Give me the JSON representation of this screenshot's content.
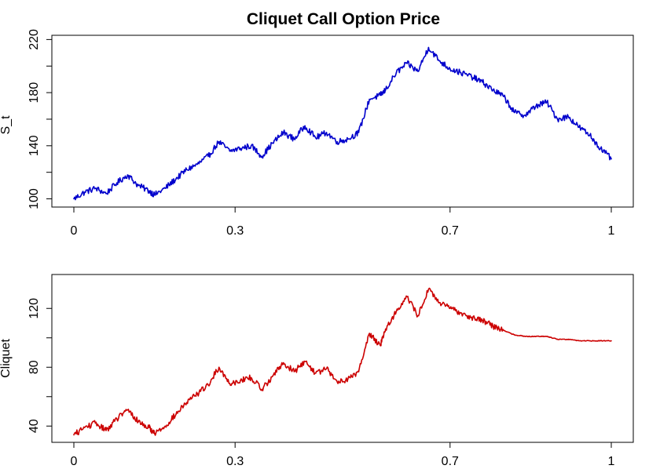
{
  "figure": {
    "title": "Cliquet Call Option Price"
  },
  "chart_data": [
    {
      "type": "line",
      "title": "Cliquet Call Option Price",
      "xlabel": "",
      "ylabel": "S_t",
      "xlim": [
        0,
        1
      ],
      "ylim": [
        95,
        222
      ],
      "grid": false,
      "x_ticks": [
        0,
        0.3,
        0.7,
        1
      ],
      "x_tick_labels": [
        "0",
        "0.3",
        "0.7",
        "1"
      ],
      "y_ticks": [
        100,
        140,
        180,
        220
      ],
      "y_tick_labels": [
        "100",
        "140",
        "180",
        "220"
      ],
      "series": [
        {
          "color": "#0000cc",
          "x": [
            0,
            0.02,
            0.04,
            0.06,
            0.08,
            0.1,
            0.12,
            0.14,
            0.15,
            0.17,
            0.19,
            0.21,
            0.23,
            0.25,
            0.27,
            0.29,
            0.31,
            0.33,
            0.35,
            0.37,
            0.39,
            0.41,
            0.43,
            0.45,
            0.47,
            0.49,
            0.51,
            0.53,
            0.55,
            0.57,
            0.58,
            0.6,
            0.62,
            0.64,
            0.66,
            0.68,
            0.7,
            0.72,
            0.74,
            0.76,
            0.78,
            0.8,
            0.82,
            0.84,
            0.86,
            0.88,
            0.9,
            0.92,
            0.94,
            0.96,
            0.98,
            1
          ],
          "values": [
            100,
            105,
            108,
            104,
            112,
            118,
            110,
            106,
            103,
            108,
            115,
            122,
            126,
            132,
            143,
            136,
            138,
            140,
            132,
            142,
            150,
            145,
            155,
            146,
            150,
            143,
            145,
            150,
            175,
            178,
            182,
            195,
            202,
            196,
            214,
            204,
            198,
            195,
            192,
            188,
            182,
            177,
            165,
            163,
            170,
            173,
            160,
            162,
            154,
            148,
            138,
            130
          ]
        }
      ]
    },
    {
      "type": "line",
      "title": "",
      "xlabel": "",
      "ylabel": "Cliquet",
      "xlim": [
        0,
        1
      ],
      "ylim": [
        30,
        142
      ],
      "grid": false,
      "x_ticks": [
        0,
        0.3,
        0.7,
        1
      ],
      "x_tick_labels": [
        "0",
        "0.3",
        "0.7",
        "1"
      ],
      "y_ticks": [
        40,
        80,
        120
      ],
      "y_tick_labels": [
        "40",
        "80",
        "120"
      ],
      "series": [
        {
          "color": "#cc0000",
          "x": [
            0,
            0.02,
            0.04,
            0.06,
            0.08,
            0.1,
            0.12,
            0.14,
            0.15,
            0.17,
            0.19,
            0.21,
            0.23,
            0.25,
            0.27,
            0.29,
            0.31,
            0.33,
            0.35,
            0.37,
            0.39,
            0.41,
            0.43,
            0.45,
            0.47,
            0.49,
            0.51,
            0.53,
            0.55,
            0.57,
            0.58,
            0.6,
            0.62,
            0.64,
            0.66,
            0.68,
            0.7,
            0.72,
            0.74,
            0.76,
            0.78,
            0.8,
            0.82,
            0.84,
            0.86,
            0.88,
            0.9,
            0.92,
            0.94,
            0.96,
            0.98,
            1
          ],
          "values": [
            34,
            39,
            42,
            37,
            45,
            51,
            43,
            39,
            35,
            40,
            48,
            56,
            62,
            68,
            80,
            69,
            71,
            73,
            65,
            74,
            83,
            77,
            84,
            76,
            79,
            70,
            72,
            77,
            103,
            95,
            106,
            118,
            128,
            115,
            133,
            124,
            120,
            117,
            114,
            112,
            108,
            105,
            102,
            101,
            101,
            101,
            99,
            99,
            98,
            98,
            98,
            98
          ]
        }
      ]
    }
  ]
}
